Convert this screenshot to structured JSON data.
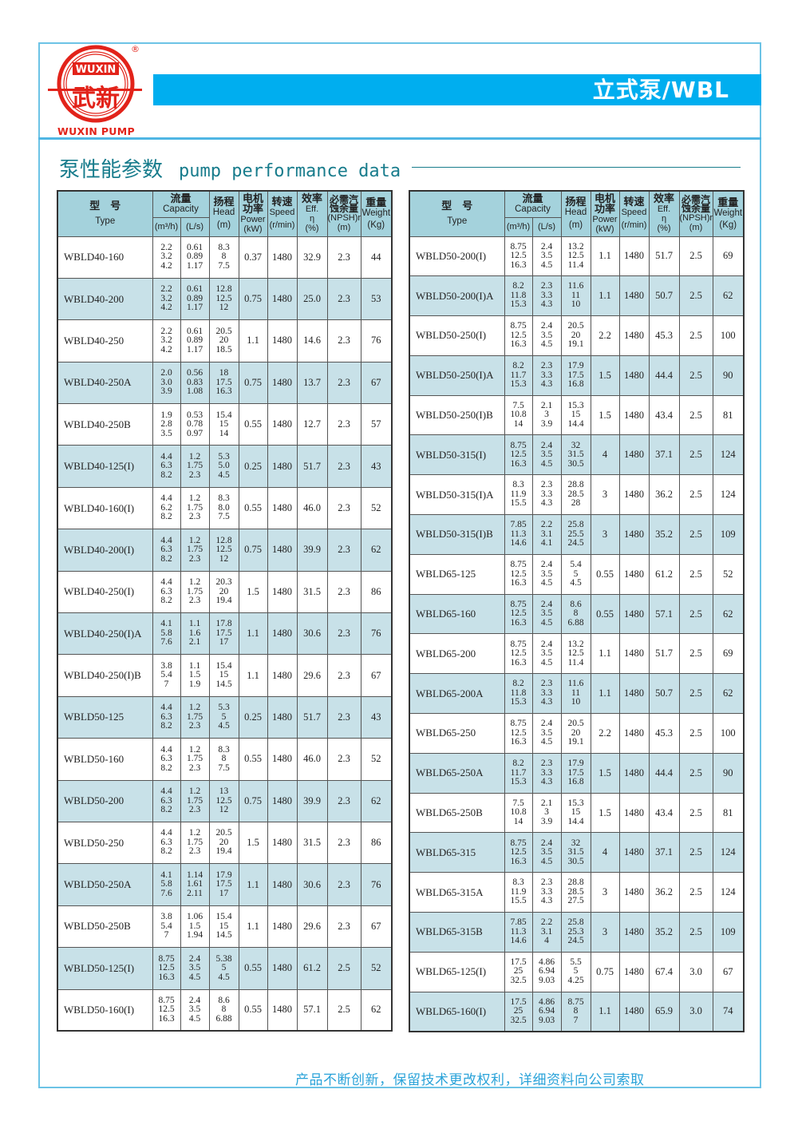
{
  "brand": {
    "logo_top": "WUXIN",
    "logo_cn": "武新",
    "logo_bottom": "WUXIN PUMP",
    "registered": "®",
    "color": "#e2231a"
  },
  "header": {
    "title": "立式泵/WBL",
    "bar_color": "#00aeef"
  },
  "section": {
    "title_cn": "泵性能参数",
    "title_en": "pump performance data"
  },
  "table_header": {
    "type_cn": "型　号",
    "type_en": "Type",
    "capacity_cn": "流量",
    "capacity_en": "Capacity",
    "capacity_unit1": "(m³/h)",
    "capacity_unit2": "(L/s)",
    "head_cn": "扬程",
    "head_en": "Head",
    "head_unit": "(m)",
    "power_cn": "电机功率",
    "power_en": "Power",
    "power_unit": "(kW)",
    "speed_cn": "转速",
    "speed_en": "Speed",
    "speed_unit": "(r/min)",
    "eff_cn": "效率",
    "eff_en": "Eff.",
    "eff_sym": "η",
    "eff_unit": "(%)",
    "npsh_cn": "必需汽蚀余量",
    "npsh_en": "(NPSH)r",
    "npsh_unit": "(m)",
    "weight_cn": "重量",
    "weight_en": "Weight",
    "weight_unit": "(Kg)"
  },
  "left_table": [
    [
      "WBLD40-160",
      [
        "2.2",
        "3.2",
        "4.2"
      ],
      [
        "0.61",
        "0.89",
        "1.17"
      ],
      [
        "8.3",
        "8",
        "7.5"
      ],
      "0.37",
      "1480",
      "32.9",
      "2.3",
      "44"
    ],
    [
      "WBLD40-200",
      [
        "2.2",
        "3.2",
        "4.2"
      ],
      [
        "0.61",
        "0.89",
        "1.17"
      ],
      [
        "12.8",
        "12.5",
        "12"
      ],
      "0.75",
      "1480",
      "25.0",
      "2.3",
      "53"
    ],
    [
      "WBLD40-250",
      [
        "2.2",
        "3.2",
        "4.2"
      ],
      [
        "0.61",
        "0.89",
        "1.17"
      ],
      [
        "20.5",
        "20",
        "18.5"
      ],
      "1.1",
      "1480",
      "14.6",
      "2.3",
      "76"
    ],
    [
      "WBLD40-250A",
      [
        "2.0",
        "3.0",
        "3.9"
      ],
      [
        "0.56",
        "0.83",
        "1.08"
      ],
      [
        "18",
        "17.5",
        "16.3"
      ],
      "0.75",
      "1480",
      "13.7",
      "2.3",
      "67"
    ],
    [
      "WBLD40-250B",
      [
        "1.9",
        "2.8",
        "3.5"
      ],
      [
        "0.53",
        "0.78",
        "0.97"
      ],
      [
        "15.4",
        "15",
        "14"
      ],
      "0.55",
      "1480",
      "12.7",
      "2.3",
      "57"
    ],
    [
      "WBLD40-125(I)",
      [
        "4.4",
        "6.3",
        "8.2"
      ],
      [
        "1.2",
        "1.75",
        "2.3"
      ],
      [
        "5.3",
        "5.0",
        "4.5"
      ],
      "0.25",
      "1480",
      "51.7",
      "2.3",
      "43"
    ],
    [
      "WBLD40-160(I)",
      [
        "4.4",
        "6.2",
        "8.2"
      ],
      [
        "1.2",
        "1.75",
        "2.3"
      ],
      [
        "8.3",
        "8.0",
        "7.5"
      ],
      "0.55",
      "1480",
      "46.0",
      "2.3",
      "52"
    ],
    [
      "WBLD40-200(I)",
      [
        "4.4",
        "6.3",
        "8.2"
      ],
      [
        "1.2",
        "1.75",
        "2.3"
      ],
      [
        "12.8",
        "12.5",
        "12"
      ],
      "0.75",
      "1480",
      "39.9",
      "2.3",
      "62"
    ],
    [
      "WBLD40-250(I)",
      [
        "4.4",
        "6.3",
        "8.2"
      ],
      [
        "1.2",
        "1.75",
        "2.3"
      ],
      [
        "20.3",
        "20",
        "19.4"
      ],
      "1.5",
      "1480",
      "31.5",
      "2.3",
      "86"
    ],
    [
      "WBLD40-250(I)A",
      [
        "4.1",
        "5.8",
        "7.6"
      ],
      [
        "1.1",
        "1.6",
        "2.1"
      ],
      [
        "17.8",
        "17.5",
        "17"
      ],
      "1.1",
      "1480",
      "30.6",
      "2.3",
      "76"
    ],
    [
      "WBLD40-250(I)B",
      [
        "3.8",
        "5.4",
        "7"
      ],
      [
        "1.1",
        "1.5",
        "1.9"
      ],
      [
        "15.4",
        "15",
        "14.5"
      ],
      "1.1",
      "1480",
      "29.6",
      "2.3",
      "67"
    ],
    [
      "WBLD50-125",
      [
        "4.4",
        "6.3",
        "8.2"
      ],
      [
        "1.2",
        "1.75",
        "2.3"
      ],
      [
        "5.3",
        "5",
        "4.5"
      ],
      "0.25",
      "1480",
      "51.7",
      "2.3",
      "43"
    ],
    [
      "WBLD50-160",
      [
        "4.4",
        "6.3",
        "8.2"
      ],
      [
        "1.2",
        "1.75",
        "2.3"
      ],
      [
        "8.3",
        "8",
        "7.5"
      ],
      "0.55",
      "1480",
      "46.0",
      "2.3",
      "52"
    ],
    [
      "WBLD50-200",
      [
        "4.4",
        "6.3",
        "8.2"
      ],
      [
        "1.2",
        "1.75",
        "2.3"
      ],
      [
        "13",
        "12.5",
        "12"
      ],
      "0.75",
      "1480",
      "39.9",
      "2.3",
      "62"
    ],
    [
      "WBLD50-250",
      [
        "4.4",
        "6.3",
        "8.2"
      ],
      [
        "1.2",
        "1.75",
        "2.3"
      ],
      [
        "20.5",
        "20",
        "19.4"
      ],
      "1.5",
      "1480",
      "31.5",
      "2.3",
      "86"
    ],
    [
      "WBLD50-250A",
      [
        "4.1",
        "5.8",
        "7.6"
      ],
      [
        "1.14",
        "1.61",
        "2.11"
      ],
      [
        "17.9",
        "17.5",
        "17"
      ],
      "1.1",
      "1480",
      "30.6",
      "2.3",
      "76"
    ],
    [
      "WBLD50-250B",
      [
        "3.8",
        "5.4",
        "7"
      ],
      [
        "1.06",
        "1.5",
        "1.94"
      ],
      [
        "15.4",
        "15",
        "14.5"
      ],
      "1.1",
      "1480",
      "29.6",
      "2.3",
      "67"
    ],
    [
      "WBLD50-125(I)",
      [
        "8.75",
        "12.5",
        "16.3"
      ],
      [
        "2.4",
        "3.5",
        "4.5"
      ],
      [
        "5.38",
        "5",
        "4.5"
      ],
      "0.55",
      "1480",
      "61.2",
      "2.5",
      "52"
    ],
    [
      "WBLD50-160(I)",
      [
        "8.75",
        "12.5",
        "16.3"
      ],
      [
        "2.4",
        "3.5",
        "4.5"
      ],
      [
        "8.6",
        "8",
        "6.88"
      ],
      "0.55",
      "1480",
      "57.1",
      "2.5",
      "62"
    ]
  ],
  "right_table": [
    [
      "WBLD50-200(I)",
      [
        "8.75",
        "12.5",
        "16.3"
      ],
      [
        "2.4",
        "3.5",
        "4.5"
      ],
      [
        "13.2",
        "12.5",
        "11.4"
      ],
      "1.1",
      "1480",
      "51.7",
      "2.5",
      "69"
    ],
    [
      "WBLD50-200(I)A",
      [
        "8.2",
        "11.8",
        "15.3"
      ],
      [
        "2.3",
        "3.3",
        "4.3"
      ],
      [
        "11.6",
        "11",
        "10"
      ],
      "1.1",
      "1480",
      "50.7",
      "2.5",
      "62"
    ],
    [
      "WBLD50-250(I)",
      [
        "8.75",
        "12.5",
        "16.3"
      ],
      [
        "2.4",
        "3.5",
        "4.5"
      ],
      [
        "20.5",
        "20",
        "19.1"
      ],
      "2.2",
      "1480",
      "45.3",
      "2.5",
      "100"
    ],
    [
      "WBLD50-250(I)A",
      [
        "8.2",
        "11.7",
        "15.3"
      ],
      [
        "2.3",
        "3.3",
        "4.3"
      ],
      [
        "17.9",
        "17.5",
        "16.8"
      ],
      "1.5",
      "1480",
      "44.4",
      "2.5",
      "90"
    ],
    [
      "WBLD50-250(I)B",
      [
        "7.5",
        "10.8",
        "14"
      ],
      [
        "2.1",
        "3",
        "3.9"
      ],
      [
        "15.3",
        "15",
        "14.4"
      ],
      "1.5",
      "1480",
      "43.4",
      "2.5",
      "81"
    ],
    [
      "WBLD50-315(I)",
      [
        "8.75",
        "12.5",
        "16.3"
      ],
      [
        "2.4",
        "3.5",
        "4.5"
      ],
      [
        "32",
        "31.5",
        "30.5"
      ],
      "4",
      "1480",
      "37.1",
      "2.5",
      "124"
    ],
    [
      "WBLD50-315(I)A",
      [
        "8.3",
        "11.9",
        "15.5"
      ],
      [
        "2.3",
        "3.3",
        "4.3"
      ],
      [
        "28.8",
        "28.5",
        "28"
      ],
      "3",
      "1480",
      "36.2",
      "2.5",
      "124"
    ],
    [
      "WBLD50-315(I)B",
      [
        "7.85",
        "11.3",
        "14.6"
      ],
      [
        "2.2",
        "3.1",
        "4.1"
      ],
      [
        "25.8",
        "25.5",
        "24.5"
      ],
      "3",
      "1480",
      "35.2",
      "2.5",
      "109"
    ],
    [
      "WBLD65-125",
      [
        "8.75",
        "12.5",
        "16.3"
      ],
      [
        "2.4",
        "3.5",
        "4.5"
      ],
      [
        "5.4",
        "5",
        "4.5"
      ],
      "0.55",
      "1480",
      "61.2",
      "2.5",
      "52"
    ],
    [
      "WBLD65-160",
      [
        "8.75",
        "12.5",
        "16.3"
      ],
      [
        "2.4",
        "3.5",
        "4.5"
      ],
      [
        "8.6",
        "8",
        "6.88"
      ],
      "0.55",
      "1480",
      "57.1",
      "2.5",
      "62"
    ],
    [
      "WBLD65-200",
      [
        "8.75",
        "12.5",
        "16.3"
      ],
      [
        "2.4",
        "3.5",
        "4.5"
      ],
      [
        "13.2",
        "12.5",
        "11.4"
      ],
      "1.1",
      "1480",
      "51.7",
      "2.5",
      "69"
    ],
    [
      "WBLD65-200A",
      [
        "8.2",
        "11.8",
        "15.3"
      ],
      [
        "2.3",
        "3.3",
        "4.3"
      ],
      [
        "11.6",
        "11",
        "10"
      ],
      "1.1",
      "1480",
      "50.7",
      "2.5",
      "62"
    ],
    [
      "WBLD65-250",
      [
        "8.75",
        "12.5",
        "16.3"
      ],
      [
        "2.4",
        "3.5",
        "4.5"
      ],
      [
        "20.5",
        "20",
        "19.1"
      ],
      "2.2",
      "1480",
      "45.3",
      "2.5",
      "100"
    ],
    [
      "WBLD65-250A",
      [
        "8.2",
        "11.7",
        "15.3"
      ],
      [
        "2.3",
        "3.3",
        "4.3"
      ],
      [
        "17.9",
        "17.5",
        "16.8"
      ],
      "1.5",
      "1480",
      "44.4",
      "2.5",
      "90"
    ],
    [
      "WBLD65-250B",
      [
        "7.5",
        "10.8",
        "14"
      ],
      [
        "2.1",
        "3",
        "3.9"
      ],
      [
        "15.3",
        "15",
        "14.4"
      ],
      "1.5",
      "1480",
      "43.4",
      "2.5",
      "81"
    ],
    [
      "WBLD65-315",
      [
        "8.75",
        "12.5",
        "16.3"
      ],
      [
        "2.4",
        "3.5",
        "4.5"
      ],
      [
        "32",
        "31.5",
        "30.5"
      ],
      "4",
      "1480",
      "37.1",
      "2.5",
      "124"
    ],
    [
      "WBLD65-315A",
      [
        "8.3",
        "11.9",
        "15.5"
      ],
      [
        "2.3",
        "3.3",
        "4.3"
      ],
      [
        "28.8",
        "28.5",
        "27.5"
      ],
      "3",
      "1480",
      "36.2",
      "2.5",
      "124"
    ],
    [
      "WBLD65-315B",
      [
        "7.85",
        "11.3",
        "14.6"
      ],
      [
        "2.2",
        "3.1",
        "4"
      ],
      [
        "25.8",
        "25.3",
        "24.5"
      ],
      "3",
      "1480",
      "35.2",
      "2.5",
      "109"
    ],
    [
      "WBLD65-125(I)",
      [
        "17.5",
        "25",
        "32.5"
      ],
      [
        "4.86",
        "6.94",
        "9.03"
      ],
      [
        "5.5",
        "5",
        "4.25"
      ],
      "0.75",
      "1480",
      "67.4",
      "3.0",
      "67"
    ],
    [
      "WBLD65-160(I)",
      [
        "17.5",
        "25",
        "32.5"
      ],
      [
        "4.86",
        "6.94",
        "9.03"
      ],
      [
        "8.75",
        "8",
        "7"
      ],
      "1.1",
      "1480",
      "65.9",
      "3.0",
      "74"
    ]
  ],
  "footer": {
    "note": "产品不断创新，保留技术更改权利，详细资料向公司索取"
  }
}
